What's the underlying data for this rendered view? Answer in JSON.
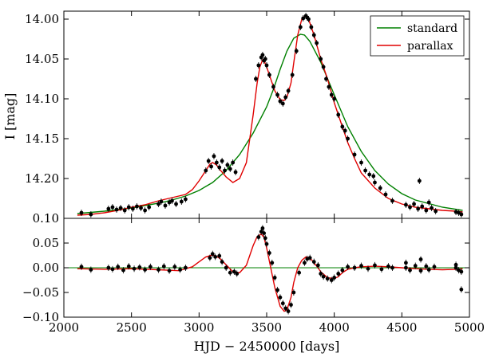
{
  "chart_data": [
    {
      "type": "line",
      "panel": "light curve",
      "title": "",
      "xlabel": "",
      "ylabel": "I [mag]",
      "xlim": [
        2000,
        5000
      ],
      "ylim": [
        14.25,
        13.99
      ],
      "y_inverted": true,
      "yticks": [
        14.0,
        14.05,
        14.1,
        14.15,
        14.2
      ],
      "ytick_labels": [
        "14.00",
        "14.05",
        "14.10",
        "14.15",
        "14.20"
      ],
      "legend_position": "top-right",
      "series": [
        {
          "name": "standard",
          "color": "#008000",
          "kind": "model",
          "x": [
            2100,
            2300,
            2500,
            2700,
            2800,
            2900,
            3000,
            3100,
            3200,
            3300,
            3400,
            3500,
            3550,
            3600,
            3650,
            3700,
            3750,
            3780,
            3820,
            3900,
            4000,
            4100,
            4200,
            4300,
            4400,
            4500,
            4600,
            4800,
            4950
          ],
          "y": [
            14.244,
            14.241,
            14.237,
            14.231,
            14.227,
            14.222,
            14.215,
            14.205,
            14.19,
            14.17,
            14.143,
            14.11,
            14.088,
            14.063,
            14.04,
            14.024,
            14.019,
            14.02,
            14.028,
            14.054,
            14.095,
            14.135,
            14.166,
            14.19,
            14.207,
            14.219,
            14.227,
            14.236,
            14.24
          ]
        },
        {
          "name": "parallax",
          "color": "#e00000",
          "kind": "model",
          "x": [
            2100,
            2200,
            2300,
            2400,
            2500,
            2600,
            2700,
            2800,
            2900,
            2950,
            3000,
            3050,
            3080,
            3100,
            3130,
            3150,
            3200,
            3250,
            3300,
            3350,
            3400,
            3430,
            3450,
            3470,
            3480,
            3500,
            3530,
            3560,
            3600,
            3630,
            3650,
            3680,
            3700,
            3730,
            3760,
            3790,
            3810,
            3850,
            3900,
            3950,
            4000,
            4050,
            4100,
            4150,
            4200,
            4300,
            4400,
            4500,
            4600,
            4700,
            4800,
            4900,
            4950
          ],
          "y": [
            14.246,
            14.245,
            14.243,
            14.24,
            14.236,
            14.233,
            14.228,
            14.224,
            14.22,
            14.214,
            14.203,
            14.19,
            14.182,
            14.18,
            14.183,
            14.188,
            14.198,
            14.205,
            14.2,
            14.18,
            14.12,
            14.08,
            14.06,
            14.051,
            14.052,
            14.06,
            14.075,
            14.09,
            14.101,
            14.102,
            14.098,
            14.08,
            14.055,
            14.02,
            14.0,
            13.995,
            14.0,
            14.02,
            14.05,
            14.075,
            14.105,
            14.13,
            14.155,
            14.175,
            14.193,
            14.212,
            14.225,
            14.232,
            14.236,
            14.238,
            14.24,
            14.241,
            14.242
          ]
        },
        {
          "name": "",
          "color": "#000000",
          "kind": "data",
          "x": [
            2130,
            2200,
            2330,
            2360,
            2390,
            2420,
            2450,
            2480,
            2510,
            2540,
            2570,
            2600,
            2630,
            2700,
            2720,
            2750,
            2780,
            2800,
            2830,
            2870,
            2900,
            3050,
            3070,
            3090,
            3110,
            3130,
            3150,
            3170,
            3190,
            3210,
            3230,
            3250,
            3270,
            3420,
            3440,
            3460,
            3470,
            3480,
            3490,
            3500,
            3520,
            3550,
            3580,
            3600,
            3620,
            3640,
            3660,
            3690,
            3720,
            3750,
            3770,
            3790,
            3800,
            3810,
            3830,
            3850,
            3870,
            3900,
            3920,
            3940,
            3960,
            3980,
            4000,
            4030,
            4060,
            4080,
            4100,
            4150,
            4200,
            4230,
            4260,
            4300,
            4340,
            4380,
            4430,
            4530,
            4560,
            4590,
            4620,
            4650,
            4680,
            4700,
            4720,
            4750,
            4900,
            4920,
            4940
          ],
          "y": [
            14.243,
            14.245,
            14.238,
            14.236,
            14.239,
            14.237,
            14.24,
            14.236,
            14.238,
            14.235,
            14.237,
            14.24,
            14.236,
            14.232,
            14.229,
            14.234,
            14.23,
            14.228,
            14.232,
            14.229,
            14.226,
            14.19,
            14.178,
            14.185,
            14.172,
            14.18,
            14.186,
            14.178,
            14.19,
            14.183,
            14.188,
            14.18,
            14.192,
            14.075,
            14.058,
            14.048,
            14.045,
            14.052,
            14.05,
            14.058,
            14.07,
            14.085,
            14.095,
            14.103,
            14.106,
            14.098,
            14.09,
            14.07,
            14.04,
            14.01,
            13.999,
            13.996,
            13.998,
            14.0,
            14.01,
            14.02,
            14.03,
            14.05,
            14.06,
            14.075,
            14.085,
            14.095,
            14.1,
            14.12,
            14.135,
            14.14,
            14.15,
            14.17,
            14.18,
            14.19,
            14.195,
            14.205,
            14.212,
            14.22,
            14.228,
            14.233,
            14.236,
            14.232,
            14.238,
            14.235,
            14.24,
            14.23,
            14.237,
            14.241,
            14.242,
            14.243,
            14.245
          ]
        }
      ],
      "outliers": [
        {
          "x": 4630,
          "y": 14.203
        },
        {
          "x": 4290,
          "y": 14.197
        }
      ]
    },
    {
      "type": "line",
      "panel": "residuals",
      "title": "",
      "xlabel": "HJD − 2450000 [days]",
      "ylabel": "",
      "xlim": [
        2000,
        5000
      ],
      "ylim": [
        -0.1,
        0.1
      ],
      "xticks": [
        2000,
        2500,
        3000,
        3500,
        4000,
        4500,
        5000
      ],
      "xtick_labels": [
        "2000",
        "2500",
        "3000",
        "3500",
        "4000",
        "4500",
        "5000"
      ],
      "yticks": [
        -0.1,
        -0.05,
        0.0,
        0.05,
        0.1
      ],
      "ytick_labels": [
        "−0.10",
        "−0.05",
        "0.00",
        "0.05",
        "0.10"
      ],
      "series": [
        {
          "name": "",
          "color": "#008000",
          "kind": "zero-line",
          "x": [
            2000,
            5000
          ],
          "y": [
            0,
            0
          ]
        },
        {
          "name": "",
          "color": "#e00000",
          "kind": "model",
          "x": [
            2100,
            2300,
            2500,
            2700,
            2850,
            2950,
            3000,
            3050,
            3100,
            3150,
            3200,
            3250,
            3300,
            3350,
            3400,
            3430,
            3460,
            3480,
            3500,
            3530,
            3560,
            3600,
            3630,
            3650,
            3680,
            3700,
            3730,
            3760,
            3790,
            3820,
            3850,
            3880,
            3900,
            3950,
            4000,
            4030,
            4060,
            4100,
            4150,
            4200,
            4300,
            4400,
            4500,
            4600,
            4700,
            4800,
            4900,
            4950
          ],
          "y": [
            -0.002,
            -0.003,
            -0.002,
            -0.004,
            -0.006,
            0.002,
            0.012,
            0.022,
            0.026,
            0.02,
            0.006,
            -0.008,
            -0.01,
            0.005,
            0.045,
            0.063,
            0.068,
            0.062,
            0.04,
            0.0,
            -0.04,
            -0.078,
            -0.088,
            -0.085,
            -0.06,
            -0.03,
            0.0,
            0.015,
            0.022,
            0.02,
            0.01,
            0.0,
            -0.008,
            -0.02,
            -0.022,
            -0.018,
            -0.01,
            -0.003,
            0.0,
            0.002,
            0.003,
            0.002,
            0.0,
            -0.002,
            -0.003,
            -0.004,
            -0.003,
            -0.002
          ]
        },
        {
          "name": "",
          "color": "#000000",
          "kind": "data",
          "x": [
            2130,
            2200,
            2330,
            2360,
            2400,
            2440,
            2480,
            2520,
            2560,
            2600,
            2640,
            2700,
            2740,
            2780,
            2820,
            2860,
            2900,
            3080,
            3100,
            3120,
            3150,
            3170,
            3200,
            3230,
            3260,
            3280,
            3440,
            3460,
            3470,
            3480,
            3490,
            3500,
            3520,
            3540,
            3560,
            3580,
            3600,
            3620,
            3640,
            3660,
            3680,
            3700,
            3740,
            3780,
            3800,
            3820,
            3850,
            3880,
            3900,
            3920,
            3950,
            3980,
            4000,
            4030,
            4060,
            4100,
            4150,
            4200,
            4250,
            4300,
            4350,
            4400,
            4430,
            4530,
            4560,
            4600,
            4640,
            4680,
            4700,
            4740,
            4900,
            4920,
            4940
          ],
          "y": [
            0.002,
            -0.004,
            0.0,
            -0.003,
            0.002,
            -0.005,
            0.003,
            -0.002,
            0.001,
            -0.004,
            0.002,
            -0.004,
            0.003,
            -0.006,
            0.002,
            -0.004,
            0.0,
            0.02,
            0.028,
            0.022,
            0.024,
            0.012,
            0.0,
            -0.01,
            -0.008,
            -0.012,
            0.062,
            0.073,
            0.08,
            0.07,
            0.06,
            0.048,
            0.03,
            0.01,
            -0.02,
            -0.045,
            -0.06,
            -0.072,
            -0.082,
            -0.088,
            -0.075,
            -0.05,
            -0.01,
            0.01,
            0.018,
            0.02,
            0.012,
            0.005,
            -0.012,
            -0.018,
            -0.022,
            -0.025,
            -0.02,
            -0.012,
            -0.005,
            0.002,
            0.0,
            0.004,
            -0.002,
            0.005,
            -0.003,
            0.003,
            0.0,
            0.0,
            -0.005,
            0.004,
            -0.006,
            0.003,
            -0.004,
            0.002,
            0.0,
            -0.005,
            -0.008
          ]
        }
      ],
      "outliers": [
        {
          "x": 4530,
          "y": 0.01
        },
        {
          "x": 4640,
          "y": 0.017
        },
        {
          "x": 4940,
          "y": -0.044
        },
        {
          "x": 4900,
          "y": 0.006
        }
      ]
    }
  ],
  "legend": {
    "items": [
      {
        "label": "standard",
        "color": "#008000"
      },
      {
        "label": "parallax",
        "color": "#e00000"
      }
    ]
  }
}
